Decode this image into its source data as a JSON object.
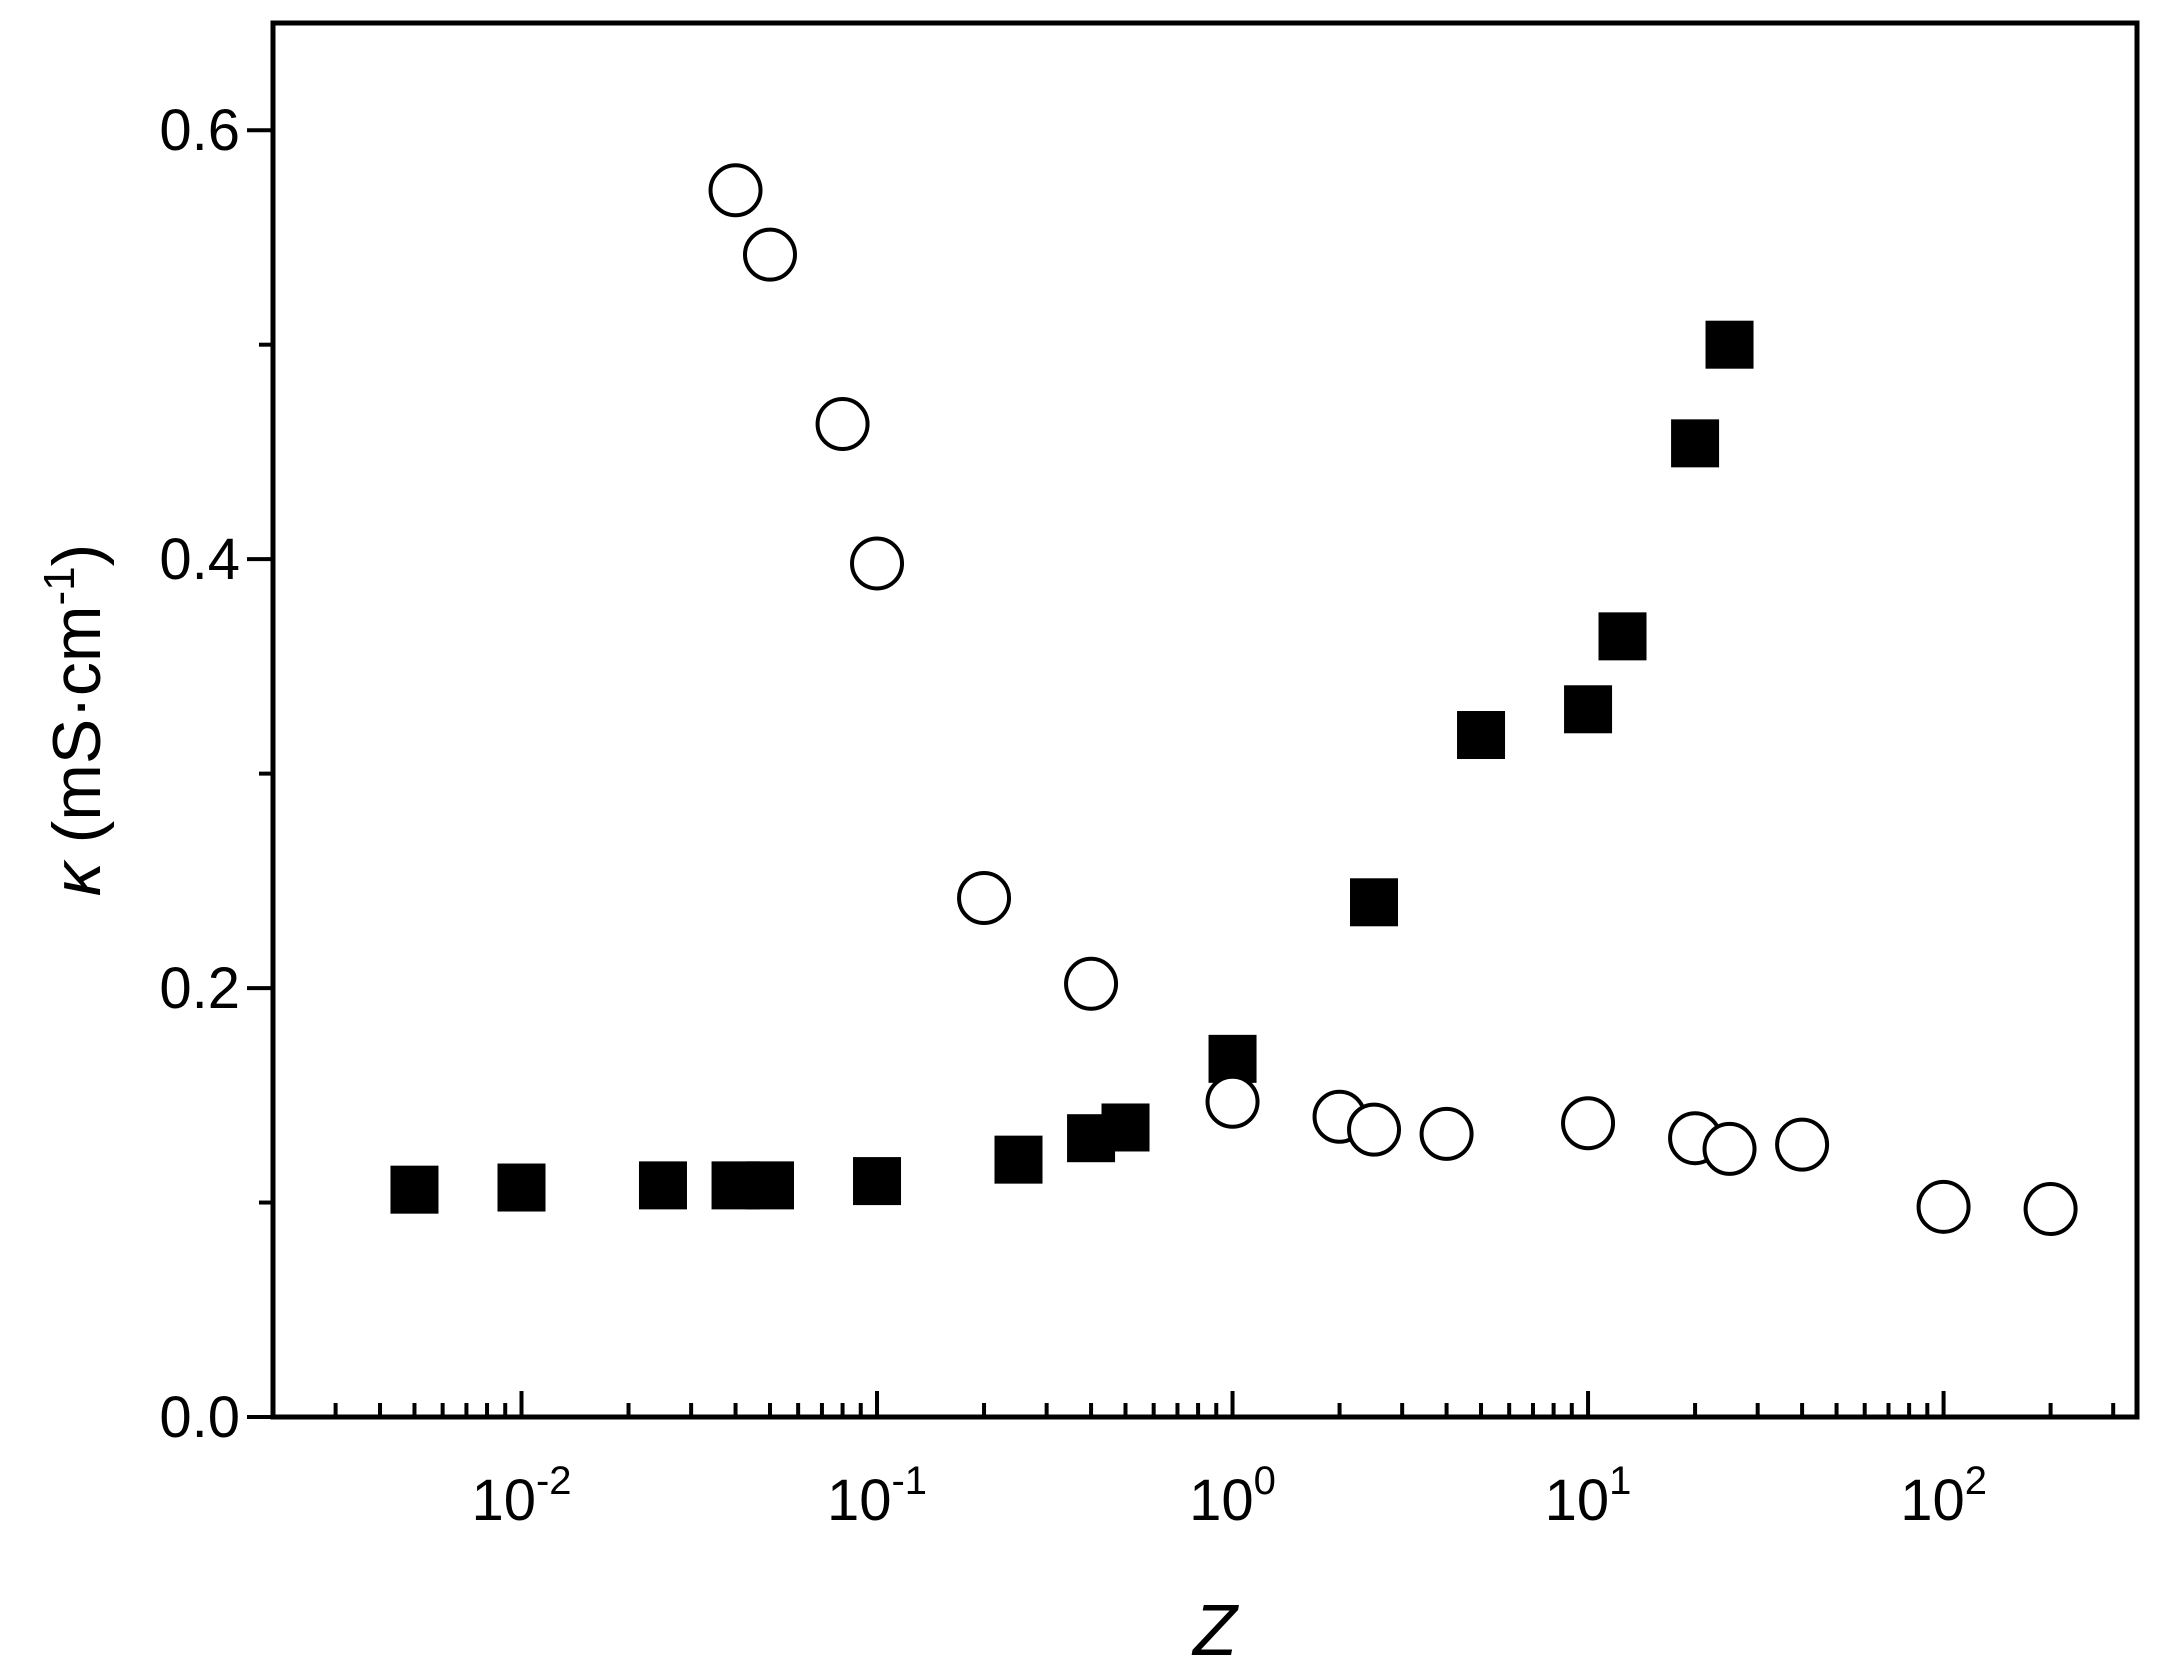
{
  "chart_data": {
    "type": "scatter",
    "title": "",
    "xlabel": "Z",
    "ylabel": {
      "symbol": "κ",
      "unit": " (mS·cm",
      "exp": "-1",
      "close": ")"
    },
    "x_scale": "log",
    "xlim": [
      0.002,
      350
    ],
    "ylim": [
      0.0,
      0.65
    ],
    "x_ticks": [
      {
        "base": "10",
        "exp": "-2",
        "value": 0.01
      },
      {
        "base": "10",
        "exp": "-1",
        "value": 0.1
      },
      {
        "base": "10",
        "exp": "0",
        "value": 1
      },
      {
        "base": "10",
        "exp": "1",
        "value": 10
      },
      {
        "base": "10",
        "exp": "2",
        "value": 100
      }
    ],
    "y_ticks": [
      {
        "label": "0.0",
        "value": 0.0
      },
      {
        "label": "0.2",
        "value": 0.2
      },
      {
        "label": "0.4",
        "value": 0.4
      },
      {
        "label": "0.6",
        "value": 0.6
      }
    ],
    "grid": false,
    "series": [
      {
        "marker": "filled-square",
        "color": "#000000",
        "x": [
          0.005,
          0.01,
          0.025,
          0.04,
          0.05,
          0.1,
          0.25,
          0.4,
          0.5,
          1,
          2.5,
          5,
          10,
          12.5,
          20,
          25
        ],
        "y": [
          0.106,
          0.107,
          0.108,
          0.108,
          0.108,
          0.11,
          0.12,
          0.13,
          0.135,
          0.167,
          0.24,
          0.318,
          0.33,
          0.364,
          0.454,
          0.5
        ]
      },
      {
        "marker": "open-circle",
        "color": "#000000",
        "x": [
          0.04,
          0.05,
          0.08,
          0.1,
          0.2,
          0.4,
          1,
          2,
          2.5,
          4,
          10,
          20,
          25,
          40,
          100,
          200
        ],
        "y": [
          0.572,
          0.542,
          0.463,
          0.398,
          0.242,
          0.202,
          0.147,
          0.14,
          0.134,
          0.132,
          0.137,
          0.13,
          0.125,
          0.127,
          0.098,
          0.097
        ]
      }
    ]
  }
}
